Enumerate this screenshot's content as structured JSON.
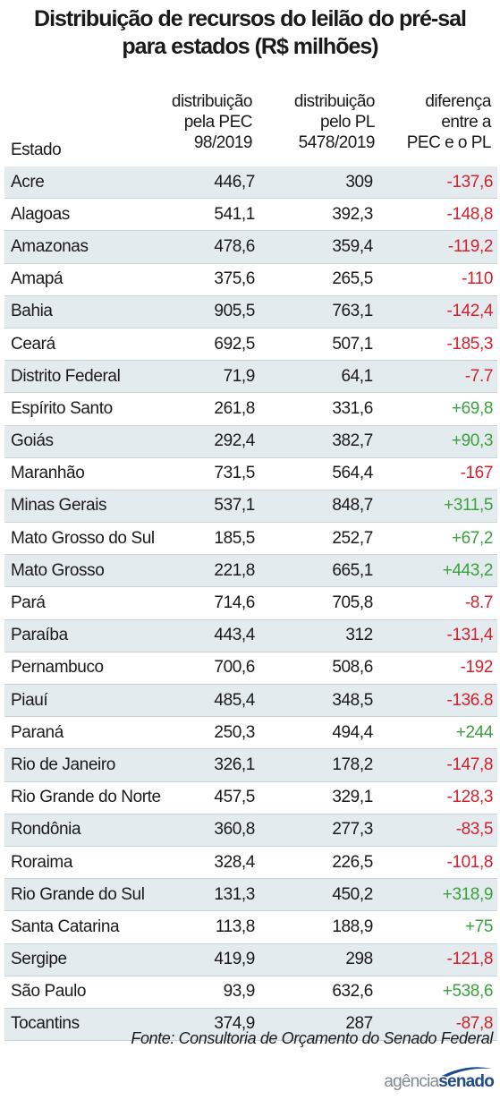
{
  "title_line1": "Distribuição de recursos do leilão do pré-sal",
  "title_line2": "para estados (R$ milhões)",
  "headers": {
    "estado": "Estado",
    "pec": [
      "distribuição",
      "pela PEC",
      "98/2019"
    ],
    "pl": [
      "distribuição",
      "pelo PL",
      "5478/2019"
    ],
    "dif": [
      "diferença",
      "entre a",
      "PEC e o PL"
    ]
  },
  "chart_data": {
    "type": "table",
    "columns": [
      "Estado",
      "distribuição pela PEC 98/2019",
      "distribuição pelo PL 5478/2019",
      "diferença entre a PEC e o PL"
    ],
    "rows": [
      {
        "estado": "Acre",
        "pec": "446,7",
        "pl": "309",
        "dif": "-137,6"
      },
      {
        "estado": "Alagoas",
        "pec": "541,1",
        "pl": "392,3",
        "dif": "-148,8"
      },
      {
        "estado": "Amazonas",
        "pec": "478,6",
        "pl": "359,4",
        "dif": "-119,2"
      },
      {
        "estado": "Amapá",
        "pec": "375,6",
        "pl": "265,5",
        "dif": "-110"
      },
      {
        "estado": "Bahia",
        "pec": "905,5",
        "pl": "763,1",
        "dif": "-142,4"
      },
      {
        "estado": "Ceará",
        "pec": "692,5",
        "pl": "507,1",
        "dif": "-185,3"
      },
      {
        "estado": "Distrito Federal",
        "pec": "71,9",
        "pl": "64,1",
        "dif": "-7.7"
      },
      {
        "estado": "Espírito Santo",
        "pec": "261,8",
        "pl": "331,6",
        "dif": "+69,8"
      },
      {
        "estado": "Goiás",
        "pec": "292,4",
        "pl": "382,7",
        "dif": "+90,3"
      },
      {
        "estado": "Maranhão",
        "pec": "731,5",
        "pl": "564,4",
        "dif": "-167"
      },
      {
        "estado": "Minas Gerais",
        "pec": "537,1",
        "pl": "848,7",
        "dif": "+311,5"
      },
      {
        "estado": "Mato Grosso do Sul",
        "pec": "185,5",
        "pl": "252,7",
        "dif": "+67,2"
      },
      {
        "estado": "Mato Grosso",
        "pec": "221,8",
        "pl": "665,1",
        "dif": "+443,2"
      },
      {
        "estado": "Pará",
        "pec": "714,6",
        "pl": "705,8",
        "dif": "-8.7"
      },
      {
        "estado": "Paraíba",
        "pec": "443,4",
        "pl": "312",
        "dif": "-131,4"
      },
      {
        "estado": "Pernambuco",
        "pec": "700,6",
        "pl": "508,6",
        "dif": "-192"
      },
      {
        "estado": "Piauí",
        "pec": "485,4",
        "pl": "348,5",
        "dif": "-136.8"
      },
      {
        "estado": "Paraná",
        "pec": "250,3",
        "pl": "494,4",
        "dif": "+244"
      },
      {
        "estado": "Rio de Janeiro",
        "pec": "326,1",
        "pl": "178,2",
        "dif": "-147,8"
      },
      {
        "estado": "Rio Grande do Norte",
        "pec": "457,5",
        "pl": "329,1",
        "dif": "-128,3"
      },
      {
        "estado": "Rondônia",
        "pec": "360,8",
        "pl": "277,3",
        "dif": "-83,5"
      },
      {
        "estado": "Roraima",
        "pec": "328,4",
        "pl": "226,5",
        "dif": "-101,8"
      },
      {
        "estado": "Rio Grande do Sul",
        "pec": "131,3",
        "pl": "450,2",
        "dif": "+318,9"
      },
      {
        "estado": "Santa Catarina",
        "pec": "113,8",
        "pl": "188,9",
        "dif": "+75"
      },
      {
        "estado": "Sergipe",
        "pec": "419,9",
        "pl": "298",
        "dif": "-121,8"
      },
      {
        "estado": "São Paulo",
        "pec": "93,9",
        "pl": "632,6",
        "dif": "+538,6"
      },
      {
        "estado": "Tocantins",
        "pec": "374,9",
        "pl": "287",
        "dif": "-87,8"
      }
    ]
  },
  "colors": {
    "negative": "#d6212c",
    "positive": "#3aa13c",
    "row_shade": "#e4ebef"
  },
  "source": "Fonte: Consultoria de Orçamento do Senado Federal",
  "logo": {
    "part1": "agência",
    "part2": "senado"
  }
}
